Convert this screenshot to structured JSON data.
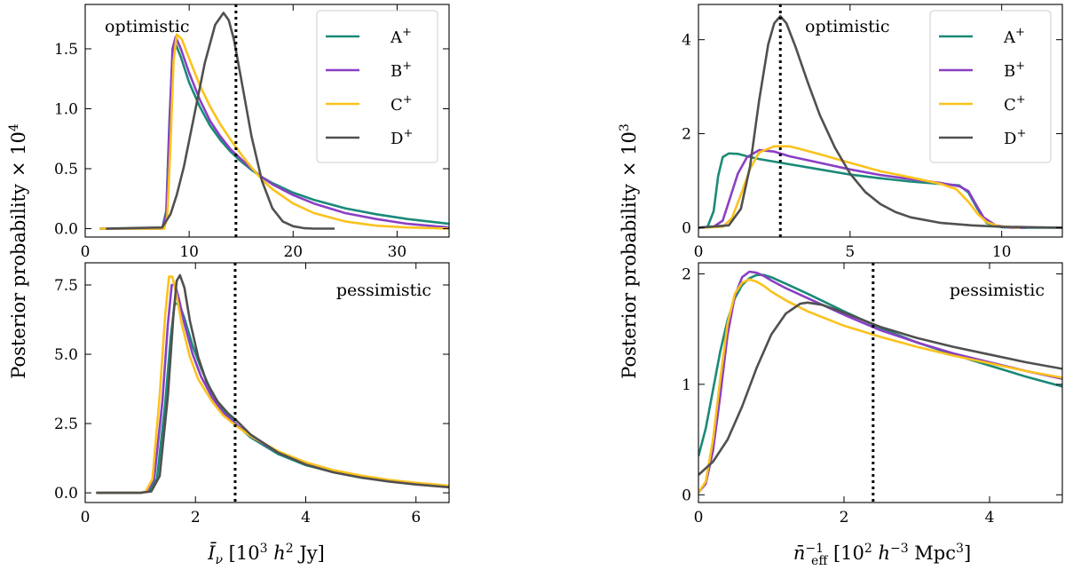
{
  "figure": {
    "left_ylabel": "Posterior probability",
    "left_ylabel_factor": "× 10",
    "left_ylabel_exp": "4",
    "right_ylabel": "Posterior probability",
    "right_ylabel_factor": "× 10",
    "right_ylabel_exp": "3",
    "left_xlabel": "Ī",
    "left_xlabel_sub": "ν",
    "left_xlabel_unit_a": " [10",
    "left_xlabel_unit_a_exp": "3",
    "left_xlabel_unit_b": " h",
    "left_xlabel_unit_b_exp": "2",
    "left_xlabel_unit_c": " Jy]",
    "right_xlabel": "n̄",
    "right_xlabel_exp": "−1",
    "right_xlabel_sub": "eff",
    "right_xlabel_unit_a": " [10",
    "right_xlabel_unit_a_exp": "2",
    "right_xlabel_unit_b": " h",
    "right_xlabel_unit_b_exp": "−3",
    "right_xlabel_unit_c": " Mpc",
    "right_xlabel_unit_c_exp": "3",
    "right_xlabel_unit_d": "]"
  },
  "colors": {
    "A": "#1a8a78",
    "B": "#8a3fc4",
    "C": "#fbc21c",
    "D": "#505050",
    "marker": "#000000"
  },
  "chart_data": [
    {
      "id": "tl",
      "type": "line",
      "annotation": "optimistic",
      "xlim": [
        0,
        35
      ],
      "ylim": [
        -0.07,
        1.87
      ],
      "xticks": [
        0,
        10,
        20,
        30
      ],
      "xtick_labels": [
        "0",
        "10",
        "20",
        "30"
      ],
      "show_xtick_labels": true,
      "yticks": [
        0,
        0.5,
        1.0,
        1.5
      ],
      "ytick_labels": [
        "0.0",
        "0.5",
        "1.0",
        "1.5"
      ],
      "vline": 14.5,
      "legend": true,
      "series": [
        {
          "name": "A",
          "sup": "+",
          "color_key": "A",
          "x": [
            1.4,
            7.4,
            7.8,
            8.1,
            8.4,
            8.7,
            9.2,
            10,
            11,
            12,
            13,
            14,
            15,
            16,
            17,
            18,
            20,
            22,
            25,
            28,
            31,
            35
          ],
          "y": [
            0,
            0,
            0.15,
            0.9,
            1.45,
            1.54,
            1.43,
            1.22,
            1.02,
            0.86,
            0.74,
            0.64,
            0.56,
            0.49,
            0.43,
            0.38,
            0.3,
            0.24,
            0.17,
            0.12,
            0.08,
            0.04
          ]
        },
        {
          "name": "B",
          "sup": "+",
          "color_key": "B",
          "x": [
            1.4,
            7.4,
            7.8,
            8.1,
            8.4,
            8.7,
            9.2,
            10,
            11,
            12,
            13,
            14,
            15,
            16,
            17,
            18,
            20,
            22,
            25,
            28,
            31,
            35
          ],
          "y": [
            0,
            0,
            0.12,
            0.85,
            1.5,
            1.6,
            1.5,
            1.3,
            1.08,
            0.9,
            0.77,
            0.66,
            0.58,
            0.5,
            0.43,
            0.37,
            0.28,
            0.21,
            0.13,
            0.08,
            0.04,
            0.01
          ]
        },
        {
          "name": "C",
          "sup": "+",
          "color_key": "C",
          "x": [
            1.4,
            7.6,
            7.9,
            8.2,
            8.5,
            8.8,
            9.3,
            10,
            11,
            12,
            13,
            14,
            15,
            16,
            17,
            18,
            20,
            22,
            25,
            28,
            31,
            35
          ],
          "y": [
            0,
            0,
            0.1,
            0.7,
            1.4,
            1.62,
            1.58,
            1.42,
            1.2,
            1.02,
            0.87,
            0.74,
            0.62,
            0.51,
            0.41,
            0.33,
            0.21,
            0.13,
            0.06,
            0.025,
            0.01,
            0
          ]
        },
        {
          "name": "D",
          "sup": "+",
          "color_key": "D",
          "x": [
            2,
            7.4,
            8.2,
            8.8,
            9.5,
            10.5,
            11.5,
            12.5,
            13.3,
            13.8,
            14.3,
            15,
            16,
            17,
            18,
            19,
            20,
            21,
            22,
            24
          ],
          "y": [
            0,
            0.01,
            0.12,
            0.28,
            0.52,
            0.95,
            1.38,
            1.7,
            1.8,
            1.74,
            1.58,
            1.25,
            0.77,
            0.4,
            0.17,
            0.06,
            0.02,
            0.005,
            0,
            0
          ]
        }
      ]
    },
    {
      "id": "bl",
      "type": "line",
      "annotation": "pessimistic",
      "xlim": [
        0,
        6.6
      ],
      "ylim": [
        -0.35,
        8.3
      ],
      "xticks": [
        0,
        2,
        4,
        6
      ],
      "xtick_labels": [
        "0",
        "2",
        "4",
        "6"
      ],
      "show_xtick_labels": true,
      "yticks": [
        0,
        2.5,
        5.0,
        7.5
      ],
      "ytick_labels": [
        "0.0",
        "2.5",
        "5.0",
        "7.5"
      ],
      "vline": 2.72,
      "legend": false,
      "series": [
        {
          "name": "A",
          "color_key": "A",
          "x": [
            0.2,
            1.0,
            1.15,
            1.3,
            1.45,
            1.55,
            1.62,
            1.7,
            1.8,
            1.95,
            2.1,
            2.3,
            2.5,
            2.75,
            3.0,
            3.5,
            4.0,
            4.5,
            5.0,
            5.5,
            6.0,
            6.6
          ],
          "y": [
            0,
            0,
            0.05,
            0.5,
            3.2,
            5.6,
            6.8,
            6.85,
            6.3,
            5.3,
            4.5,
            3.6,
            3.0,
            2.45,
            2.0,
            1.4,
            1.0,
            0.75,
            0.55,
            0.42,
            0.32,
            0.22
          ]
        },
        {
          "name": "B",
          "color_key": "B",
          "x": [
            0.2,
            1.0,
            1.12,
            1.25,
            1.4,
            1.5,
            1.57,
            1.63,
            1.7,
            1.8,
            1.95,
            2.1,
            2.3,
            2.5,
            2.75,
            3.0,
            3.5,
            4.0,
            4.5,
            5.0,
            5.5,
            6.0,
            6.6
          ],
          "y": [
            0,
            0,
            0.05,
            0.5,
            3.3,
            6.1,
            7.5,
            7.5,
            7.0,
            6.1,
            5.0,
            4.2,
            3.45,
            2.9,
            2.45,
            2.05,
            1.45,
            1.05,
            0.78,
            0.58,
            0.44,
            0.34,
            0.24
          ]
        },
        {
          "name": "C",
          "color_key": "C",
          "x": [
            0.2,
            1.0,
            1.1,
            1.22,
            1.35,
            1.45,
            1.52,
            1.58,
            1.65,
            1.75,
            1.9,
            2.05,
            2.3,
            2.5,
            2.75,
            3.0,
            3.5,
            4.0,
            4.5,
            5.0,
            5.5,
            6.0,
            6.6
          ],
          "y": [
            0,
            0,
            0.05,
            0.5,
            3.5,
            6.4,
            7.8,
            7.8,
            7.2,
            6.1,
            4.9,
            4.1,
            3.3,
            2.8,
            2.4,
            2.05,
            1.5,
            1.1,
            0.82,
            0.62,
            0.47,
            0.36,
            0.26
          ]
        },
        {
          "name": "D",
          "color_key": "D",
          "x": [
            0.2,
            1.0,
            1.2,
            1.35,
            1.5,
            1.6,
            1.66,
            1.72,
            1.8,
            1.9,
            2.05,
            2.2,
            2.4,
            2.6,
            2.75,
            3.0,
            3.5,
            4.0,
            4.5,
            5.0,
            5.5,
            6.0,
            6.6
          ],
          "y": [
            0,
            0,
            0.05,
            0.6,
            3.5,
            6.4,
            7.65,
            7.85,
            7.4,
            6.2,
            4.9,
            4.0,
            3.3,
            2.85,
            2.6,
            2.1,
            1.45,
            1.02,
            0.74,
            0.55,
            0.41,
            0.3,
            0.2
          ]
        }
      ]
    },
    {
      "id": "tr",
      "type": "line",
      "annotation": "optimistic",
      "xlim": [
        0,
        12
      ],
      "ylim": [
        -0.2,
        4.75
      ],
      "xticks": [
        0,
        5,
        10
      ],
      "xtick_labels": [
        "0",
        "5",
        "10"
      ],
      "show_xtick_labels": true,
      "yticks": [
        0,
        2,
        4
      ],
      "ytick_labels": [
        "0",
        "2",
        "4"
      ],
      "vline": 2.7,
      "legend": true,
      "series": [
        {
          "name": "A",
          "sup": "+",
          "color_key": "A",
          "x": [
            0,
            0.3,
            0.5,
            0.65,
            0.8,
            1.0,
            1.3,
            1.6,
            2.0,
            3.0,
            4.0,
            5.0,
            6.0,
            7.0,
            8.0,
            8.6,
            8.9,
            9.2,
            9.5,
            10,
            10.5,
            11,
            12
          ],
          "y": [
            0,
            0.02,
            0.35,
            1.1,
            1.5,
            1.58,
            1.57,
            1.52,
            1.46,
            1.35,
            1.24,
            1.13,
            1.05,
            0.98,
            0.93,
            0.9,
            0.75,
            0.4,
            0.1,
            0.01,
            0,
            0,
            0
          ]
        },
        {
          "name": "B",
          "sup": "+",
          "color_key": "B",
          "x": [
            0,
            0.5,
            0.8,
            1.0,
            1.3,
            1.6,
            2.0,
            2.5,
            3.0,
            4.0,
            5.0,
            6.0,
            7.0,
            8.0,
            8.6,
            8.9,
            9.1,
            9.4,
            9.8,
            10.3,
            10.8
          ],
          "y": [
            0,
            0.02,
            0.15,
            0.55,
            1.15,
            1.5,
            1.65,
            1.62,
            1.52,
            1.38,
            1.24,
            1.12,
            1.03,
            0.95,
            0.88,
            0.78,
            0.55,
            0.22,
            0.05,
            0,
            0
          ]
        },
        {
          "name": "C",
          "sup": "+",
          "color_key": "C",
          "x": [
            0,
            0.8,
            1.1,
            1.4,
            1.7,
            2.0,
            2.5,
            3.0,
            3.5,
            4.0,
            5.0,
            6.0,
            7.0,
            8.0,
            8.5,
            8.9,
            9.2,
            9.5,
            9.9,
            10.6
          ],
          "y": [
            0,
            0.02,
            0.2,
            0.7,
            1.25,
            1.6,
            1.73,
            1.73,
            1.65,
            1.56,
            1.38,
            1.2,
            1.07,
            0.93,
            0.82,
            0.55,
            0.3,
            0.12,
            0.03,
            0
          ]
        },
        {
          "name": "D",
          "sup": "+",
          "color_key": "D",
          "x": [
            0,
            1.0,
            1.4,
            1.7,
            2.0,
            2.3,
            2.5,
            2.7,
            2.9,
            3.2,
            3.6,
            4.0,
            4.5,
            5.0,
            5.5,
            6.0,
            6.5,
            7.0,
            8.0,
            9.0,
            10.0,
            11.0,
            12.0
          ],
          "y": [
            0,
            0.05,
            0.4,
            1.3,
            2.7,
            3.9,
            4.35,
            4.5,
            4.35,
            3.85,
            3.1,
            2.4,
            1.7,
            1.15,
            0.76,
            0.5,
            0.33,
            0.22,
            0.1,
            0.05,
            0.02,
            0.01,
            0
          ]
        }
      ]
    },
    {
      "id": "br",
      "type": "line",
      "annotation": "pessimistic",
      "xlim": [
        0,
        5
      ],
      "ylim": [
        -0.07,
        2.1
      ],
      "xticks": [
        0,
        2,
        4
      ],
      "xtick_labels": [
        "0",
        "2",
        "4"
      ],
      "show_xtick_labels": true,
      "yticks": [
        0,
        1,
        2
      ],
      "ytick_labels": [
        "0",
        "1",
        "2"
      ],
      "vline": 2.4,
      "legend": false,
      "series": [
        {
          "name": "A",
          "color_key": "A",
          "x": [
            0,
            0.1,
            0.2,
            0.3,
            0.4,
            0.5,
            0.6,
            0.7,
            0.8,
            0.9,
            1.0,
            1.2,
            1.5,
            2.0,
            2.5,
            3.0,
            3.5,
            4.0,
            4.5,
            5.0
          ],
          "y": [
            0.35,
            0.6,
            0.95,
            1.3,
            1.58,
            1.78,
            1.9,
            1.96,
            1.99,
            1.99,
            1.97,
            1.91,
            1.82,
            1.66,
            1.51,
            1.38,
            1.27,
            1.17,
            1.07,
            0.98
          ]
        },
        {
          "name": "B",
          "color_key": "B",
          "x": [
            0,
            0.1,
            0.2,
            0.3,
            0.4,
            0.5,
            0.6,
            0.7,
            0.8,
            0.9,
            1.0,
            1.2,
            1.5,
            2.0,
            2.5,
            3.0,
            3.5,
            4.0,
            4.5,
            5.0
          ],
          "y": [
            0.02,
            0.1,
            0.4,
            0.9,
            1.45,
            1.8,
            1.97,
            2.02,
            2.01,
            1.98,
            1.94,
            1.87,
            1.78,
            1.63,
            1.49,
            1.38,
            1.28,
            1.2,
            1.12,
            1.05
          ]
        },
        {
          "name": "C",
          "color_key": "C",
          "x": [
            0,
            0.1,
            0.2,
            0.3,
            0.4,
            0.5,
            0.6,
            0.7,
            0.8,
            0.9,
            1.0,
            1.2,
            1.5,
            2.0,
            2.5,
            3.0,
            3.5,
            4.0,
            4.5,
            5.0
          ],
          "y": [
            0.02,
            0.12,
            0.5,
            1.05,
            1.55,
            1.82,
            1.92,
            1.95,
            1.93,
            1.89,
            1.84,
            1.76,
            1.66,
            1.53,
            1.43,
            1.34,
            1.26,
            1.19,
            1.12,
            1.06
          ]
        },
        {
          "name": "D",
          "color_key": "D",
          "x": [
            0,
            0.2,
            0.4,
            0.6,
            0.8,
            1.0,
            1.2,
            1.4,
            1.5,
            1.7,
            2.0,
            2.5,
            3.0,
            3.5,
            4.0,
            4.5,
            5.0
          ],
          "y": [
            0.18,
            0.3,
            0.5,
            0.8,
            1.15,
            1.45,
            1.64,
            1.73,
            1.74,
            1.72,
            1.65,
            1.52,
            1.42,
            1.34,
            1.27,
            1.2,
            1.14
          ]
        }
      ]
    }
  ]
}
